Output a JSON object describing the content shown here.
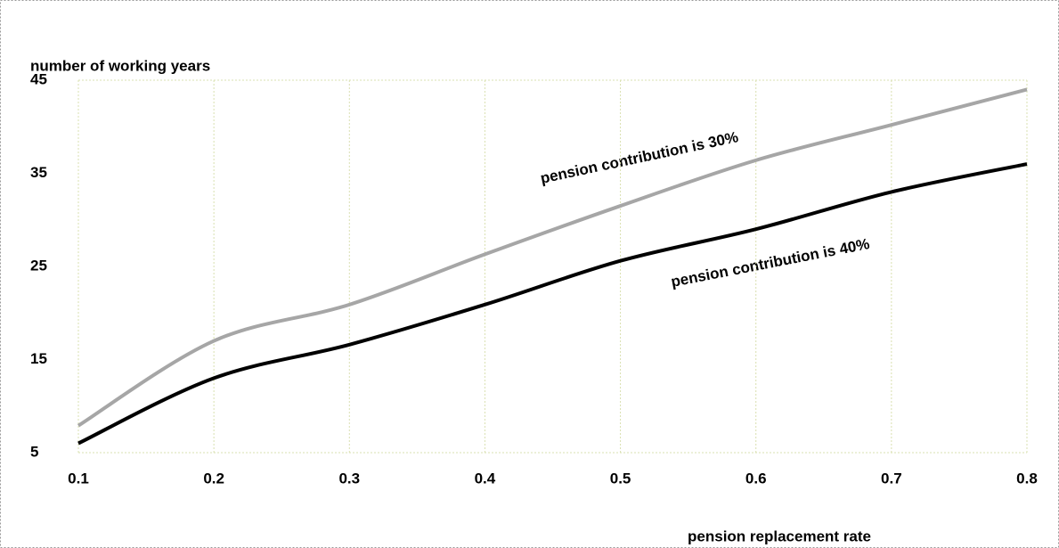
{
  "chart_data": {
    "type": "line",
    "y_axis_label": "number of working years",
    "x_axis_label": "pension replacement rate",
    "x": [
      0.1,
      0.2,
      0.3,
      0.4,
      0.5,
      0.6,
      0.7,
      0.8
    ],
    "series": [
      {
        "name": "pension contribution is  30%",
        "color": "#a6a6a6",
        "values": [
          7.9,
          17,
          20.9,
          26.3,
          31.5,
          36.4,
          40.2,
          44
        ]
      },
      {
        "name": "pension contribution is  40%",
        "color": "#000000",
        "values": [
          6,
          13,
          16.6,
          20.9,
          25.6,
          29,
          33,
          36
        ]
      }
    ],
    "xlim": [
      0.1,
      0.8
    ],
    "xticks": [
      0.1,
      0.2,
      0.3,
      0.4,
      0.5,
      0.6,
      0.7,
      0.8
    ],
    "ylim": [
      5,
      45
    ],
    "yticks": [
      5,
      15,
      25,
      35,
      45
    ],
    "grid": "x",
    "smooth": true
  }
}
